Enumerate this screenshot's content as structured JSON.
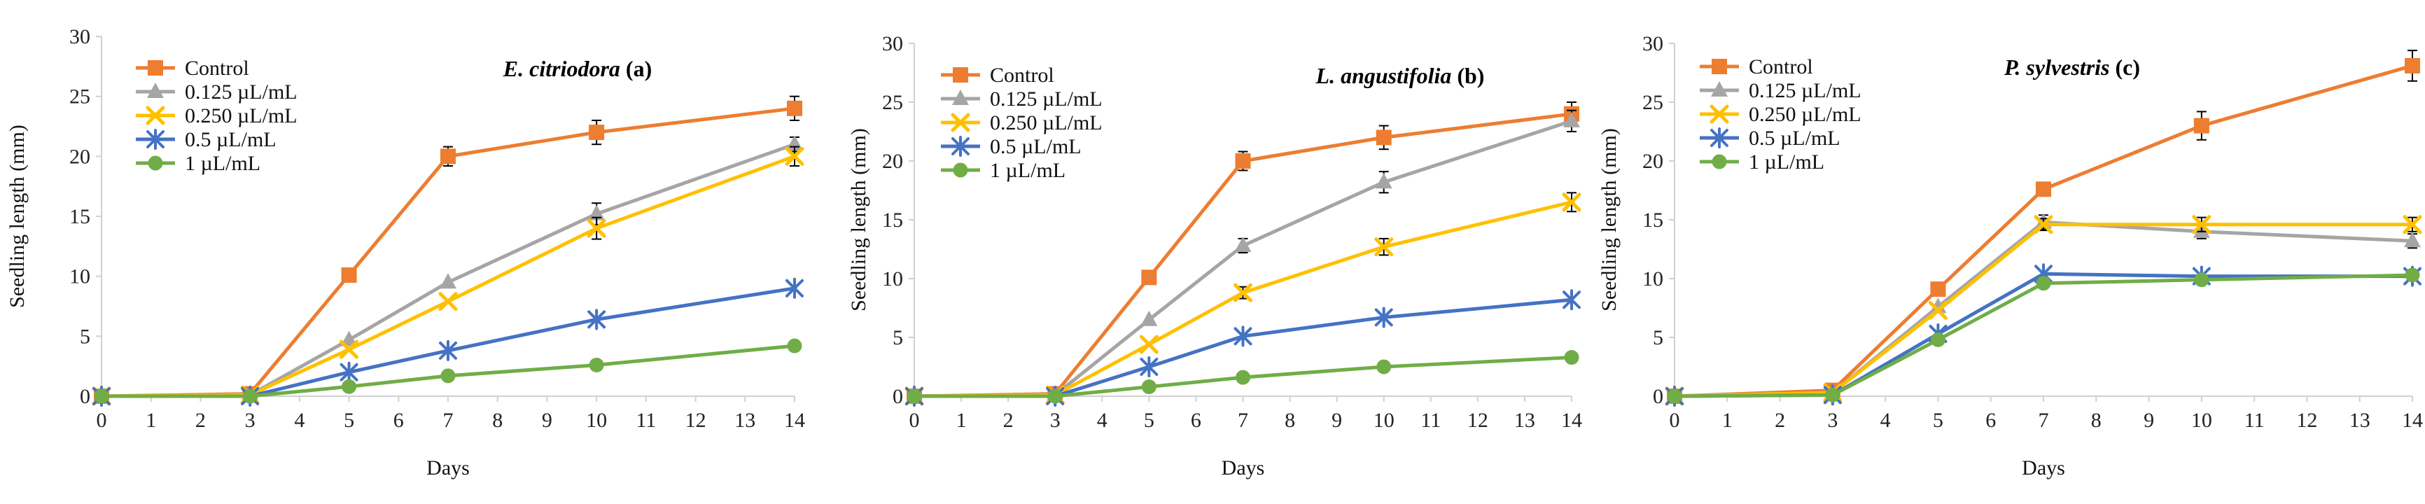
{
  "colors": {
    "Control": "#ED7D31",
    "0.125 µL/mL": "#A5A5A5",
    "0.250 µL/mL": "#FFC000",
    "0.5 µL/mL": "#4472C4",
    "1 µL/mL": "#70AD47",
    "axis": "#d0d0d0",
    "errorbar": "#000000"
  },
  "chart_data": [
    {
      "type": "line",
      "title_species": "E. citriodora",
      "title_suffix": " (a)",
      "xlabel": "Days",
      "ylabel": "Seedling length (mm)",
      "xlim": [
        0,
        14
      ],
      "ylim": [
        0,
        30
      ],
      "xticks": [
        "0",
        "1",
        "2",
        "3",
        "4",
        "5",
        "6",
        "7",
        "8",
        "9",
        "10",
        "11",
        "12",
        "13",
        "14"
      ],
      "yticks": [
        "0",
        "5",
        "10",
        "15",
        "20",
        "25",
        "30"
      ],
      "x": [
        0,
        3,
        5,
        7,
        10,
        14
      ],
      "series": [
        {
          "name": "Control",
          "marker": "square",
          "values": [
            0,
            0.2,
            10.1,
            20.0,
            22.0,
            24.0
          ],
          "errors": [
            0,
            0,
            0,
            0.8,
            1.0,
            1.0
          ]
        },
        {
          "name": "0.125 µL/mL",
          "marker": "triangle",
          "values": [
            0,
            0.1,
            4.7,
            9.5,
            15.2,
            21.0
          ],
          "errors": [
            0,
            0,
            0,
            0,
            0.9,
            0.6
          ]
        },
        {
          "name": "0.250 µL/mL",
          "marker": "x",
          "values": [
            0,
            0.1,
            3.9,
            7.9,
            14.0,
            20.0
          ],
          "errors": [
            0,
            0,
            0,
            0,
            0.9,
            0.8
          ]
        },
        {
          "name": "0.5 µL/mL",
          "marker": "star",
          "values": [
            0,
            0,
            2.0,
            3.8,
            6.4,
            9.0
          ],
          "errors": [
            0,
            0,
            0,
            0,
            0,
            0
          ]
        },
        {
          "name": "1 µL/mL",
          "marker": "circle",
          "values": [
            0,
            0,
            0.8,
            1.7,
            2.6,
            4.2
          ],
          "errors": [
            0,
            0,
            0,
            0,
            0,
            0
          ]
        }
      ]
    },
    {
      "type": "line",
      "title_species": "L. angustifolia",
      "title_suffix": " (b)",
      "xlabel": "Days",
      "ylabel": "Seedling length (mm)",
      "xlim": [
        0,
        14
      ],
      "ylim": [
        0,
        30
      ],
      "xticks": [
        "0",
        "1",
        "2",
        "3",
        "4",
        "5",
        "6",
        "7",
        "8",
        "9",
        "10",
        "11",
        "12",
        "13",
        "14"
      ],
      "yticks": [
        "0",
        "5",
        "10",
        "15",
        "20",
        "25",
        "30"
      ],
      "x": [
        0,
        3,
        5,
        7,
        10,
        14
      ],
      "series": [
        {
          "name": "Control",
          "marker": "square",
          "values": [
            0,
            0.2,
            10.1,
            20.0,
            22.0,
            24.0
          ],
          "errors": [
            0,
            0,
            0,
            0.8,
            1.0,
            1.0
          ]
        },
        {
          "name": "0.125 µL/mL",
          "marker": "triangle",
          "values": [
            0,
            0.1,
            6.5,
            12.8,
            18.2,
            23.4
          ],
          "errors": [
            0,
            0,
            0,
            0.6,
            0.9,
            0.9
          ]
        },
        {
          "name": "0.250 µL/mL",
          "marker": "x",
          "values": [
            0,
            0.1,
            4.4,
            8.8,
            12.7,
            16.5
          ],
          "errors": [
            0,
            0,
            0,
            0.5,
            0.7,
            0.8
          ]
        },
        {
          "name": "0.5 µL/mL",
          "marker": "star",
          "values": [
            0,
            0,
            2.5,
            5.1,
            6.7,
            8.2
          ],
          "errors": [
            0,
            0,
            0,
            0,
            0,
            0
          ]
        },
        {
          "name": "1 µL/mL",
          "marker": "circle",
          "values": [
            0,
            0,
            0.8,
            1.6,
            2.5,
            3.3
          ],
          "errors": [
            0,
            0,
            0,
            0,
            0,
            0
          ]
        }
      ]
    },
    {
      "type": "line",
      "title_species": "P. sylvestris",
      "title_suffix": " (c)",
      "xlabel": "Days",
      "ylabel": "Seedling length (mm)",
      "xlim": [
        0,
        14
      ],
      "ylim": [
        0,
        30
      ],
      "xticks": [
        "0",
        "1",
        "2",
        "3",
        "4",
        "5",
        "6",
        "7",
        "8",
        "9",
        "10",
        "11",
        "12",
        "13",
        "14"
      ],
      "yticks": [
        "0",
        "5",
        "10",
        "15",
        "20",
        "25",
        "30"
      ],
      "x": [
        0,
        3,
        5,
        7,
        10,
        14
      ],
      "series": [
        {
          "name": "Control",
          "marker": "square",
          "values": [
            0,
            0.5,
            9.1,
            17.6,
            23.0,
            28.1
          ],
          "errors": [
            0,
            0,
            0,
            0,
            1.2,
            1.3
          ]
        },
        {
          "name": "0.125 µL/mL",
          "marker": "triangle",
          "values": [
            0,
            0.3,
            7.6,
            14.8,
            14.0,
            13.2
          ],
          "errors": [
            0,
            0,
            0,
            0.6,
            0.6,
            0.6
          ]
        },
        {
          "name": "0.250 µL/mL",
          "marker": "x",
          "values": [
            0,
            0.3,
            7.3,
            14.6,
            14.6,
            14.6
          ],
          "errors": [
            0,
            0,
            0,
            0.5,
            0.6,
            0.6
          ]
        },
        {
          "name": "0.5 µL/mL",
          "marker": "star",
          "values": [
            0,
            0.1,
            5.3,
            10.4,
            10.2,
            10.2
          ],
          "errors": [
            0,
            0,
            0,
            0,
            0,
            0
          ]
        },
        {
          "name": "1 µL/mL",
          "marker": "circle",
          "values": [
            0,
            0.1,
            4.8,
            9.6,
            9.9,
            10.3
          ],
          "errors": [
            0,
            0,
            0,
            0,
            0,
            0
          ]
        }
      ]
    }
  ]
}
